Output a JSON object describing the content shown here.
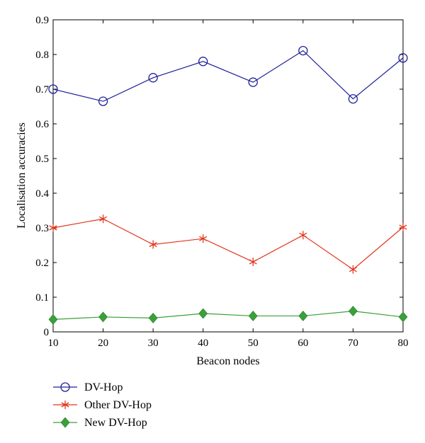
{
  "chart_data": {
    "type": "line",
    "xlabel": "Beacon nodes",
    "ylabel": "Localisation accuracies",
    "xlim": [
      10,
      80
    ],
    "ylim": [
      0,
      0.9
    ],
    "x_ticks": [
      10,
      20,
      30,
      40,
      50,
      60,
      70,
      80
    ],
    "y_ticks": [
      "0",
      "0.1",
      "0.2",
      "0.3",
      "0.4",
      "0.5",
      "0.6",
      "0.7",
      "0.8",
      "0.9"
    ],
    "grid": false,
    "legend_position": "below",
    "x": [
      10,
      20,
      30,
      40,
      50,
      60,
      70,
      80
    ],
    "series": [
      {
        "name": "DV-Hop",
        "marker": "circle",
        "color": "#1f1f9a",
        "values": [
          0.7,
          0.665,
          0.733,
          0.78,
          0.72,
          0.811,
          0.672,
          0.79
        ]
      },
      {
        "name": "Other DV-Hop",
        "marker": "asterisk",
        "color": "#e2351c",
        "values": [
          0.3,
          0.326,
          0.252,
          0.269,
          0.202,
          0.279,
          0.18,
          0.302
        ]
      },
      {
        "name": "New DV-Hop",
        "marker": "diamond",
        "color": "#3aa03a",
        "values": [
          0.036,
          0.043,
          0.04,
          0.053,
          0.046,
          0.046,
          0.06,
          0.043
        ]
      }
    ]
  }
}
